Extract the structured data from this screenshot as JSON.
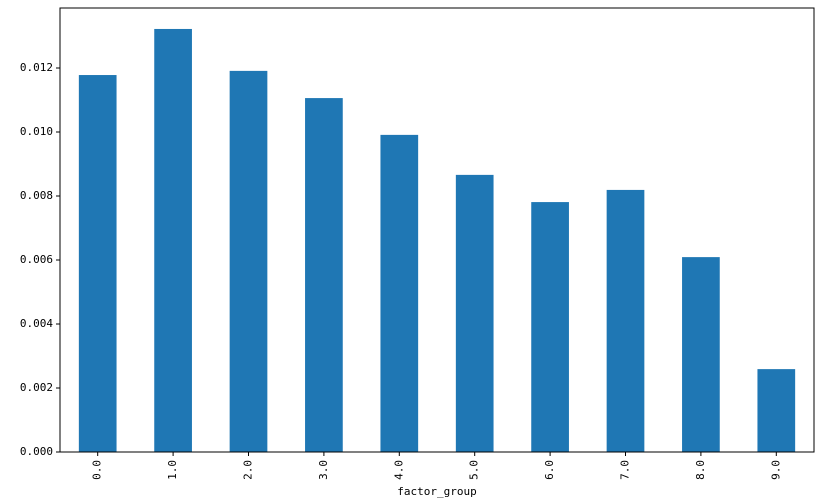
{
  "chart_data": {
    "type": "bar",
    "x_label": "factor_group",
    "categories": [
      "0.0",
      "1.0",
      "2.0",
      "3.0",
      "4.0",
      "5.0",
      "6.0",
      "7.0",
      "8.0",
      "9.0"
    ],
    "values": [
      0.01178,
      0.01322,
      0.01191,
      0.01106,
      0.00991,
      0.00866,
      0.00781,
      0.00819,
      0.00609,
      0.00259
    ],
    "color": "#1f77b4",
    "ylim": [
      0,
      0.013875
    ],
    "yticks": [
      {
        "value": 0,
        "label": "0.000"
      },
      {
        "value": 0.002,
        "label": "0.002"
      },
      {
        "value": 0.004,
        "label": "0.004"
      },
      {
        "value": 0.006,
        "label": "0.006"
      },
      {
        "value": 0.008,
        "label": "0.008"
      },
      {
        "value": 0.01,
        "label": "0.010"
      },
      {
        "value": 0.012,
        "label": "0.012"
      }
    ],
    "grid": false
  }
}
